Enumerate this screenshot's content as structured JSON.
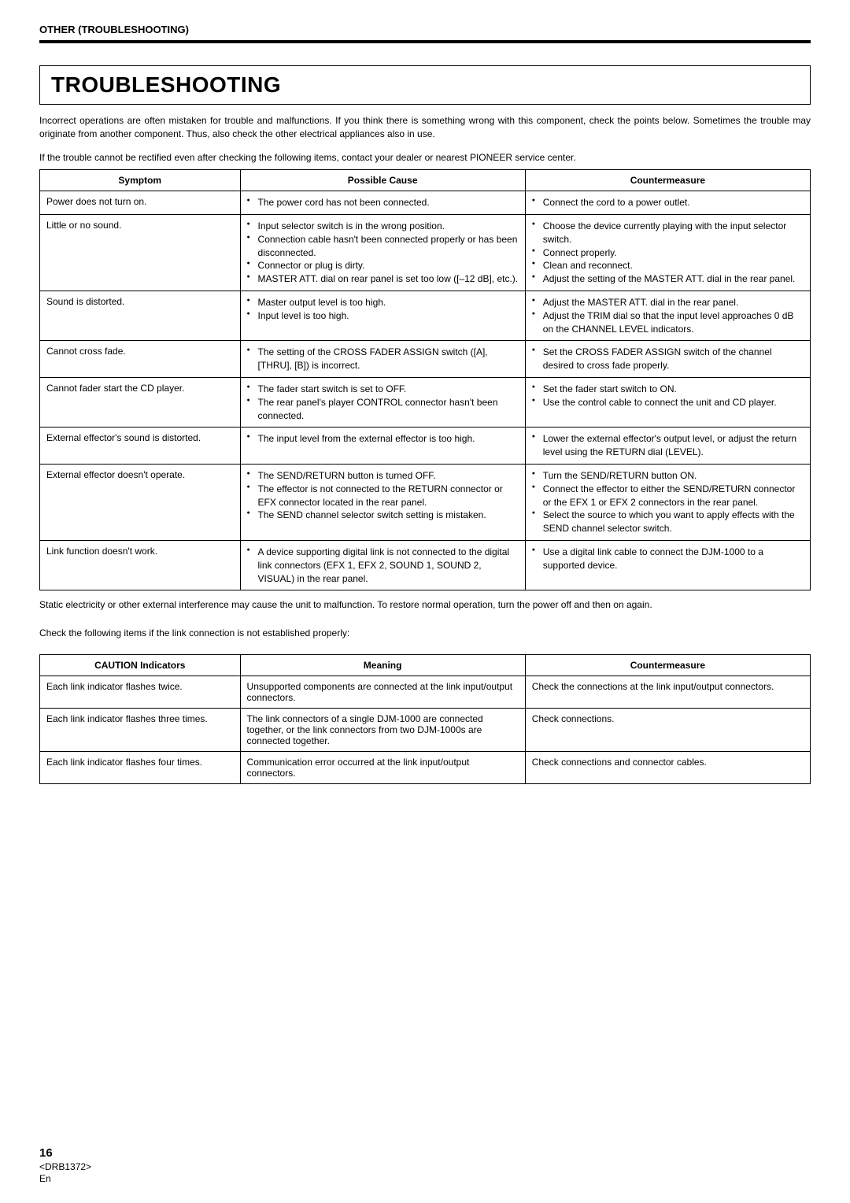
{
  "header": "OTHER (TROUBLESHOOTING)",
  "title": "TROUBLESHOOTING",
  "intro_p1": "Incorrect operations are often mistaken for trouble and malfunctions. If you think there is something wrong with this component, check the points below. Sometimes the trouble may originate from another component. Thus, also check the other electrical appliances also in use.",
  "intro_p2": "If the trouble cannot be rectified even after checking the following items, contact your dealer or nearest PIONEER service center.",
  "table1": {
    "headers": [
      "Symptom",
      "Possible Cause",
      "Countermeasure"
    ],
    "rows": [
      {
        "symptom": "Power does not turn on.",
        "cause": [
          "The power cord has not been connected."
        ],
        "counter": [
          "Connect the cord to a power outlet."
        ]
      },
      {
        "symptom": "Little or no sound.",
        "cause": [
          "Input selector switch is in the wrong position.",
          "Connection cable hasn't been connected properly or has been disconnected.",
          "Connector or plug is dirty.",
          "MASTER ATT. dial on rear panel is set too low ([–12 dB], etc.)."
        ],
        "counter": [
          "Choose the device currently playing with the input selector switch.",
          "Connect properly.",
          "Clean and reconnect.",
          "Adjust the setting of the MASTER ATT. dial in the rear panel."
        ]
      },
      {
        "symptom": "Sound is distorted.",
        "cause": [
          "Master output level is too high.",
          "Input level is too high."
        ],
        "counter": [
          "Adjust the MASTER ATT. dial in the rear panel.",
          "Adjust the TRIM dial so that the input level approaches 0 dB on the CHANNEL LEVEL indicators."
        ]
      },
      {
        "symptom": "Cannot cross fade.",
        "cause": [
          "The setting of the CROSS FADER ASSIGN switch ([A], [THRU], [B]) is incorrect."
        ],
        "counter": [
          "Set the CROSS FADER ASSIGN switch of the channel desired to cross fade properly."
        ]
      },
      {
        "symptom": "Cannot fader start the CD player.",
        "cause": [
          "The fader start switch is set to OFF.",
          "The rear panel's player CONTROL connector hasn't been connected."
        ],
        "counter": [
          "Set the fader start switch to ON.",
          "Use the control cable to connect the unit and CD player."
        ]
      },
      {
        "symptom": "External effector's sound is distorted.",
        "cause": [
          "The input level from the external effector is too high."
        ],
        "counter": [
          "Lower the external effector's output level, or adjust the return level using the RETURN dial (LEVEL)."
        ]
      },
      {
        "symptom": "External effector doesn't operate.",
        "cause": [
          "The SEND/RETURN button is turned OFF.",
          "The effector is not connected to the RETURN connector or EFX connector located in the rear panel.",
          "The SEND channel selector switch setting is mistaken."
        ],
        "counter": [
          "Turn the SEND/RETURN button ON.",
          "Connect the effector to either the SEND/RETURN connector or the EFX 1 or EFX 2 connectors in the rear panel.",
          "Select the source to which you want to apply effects with the SEND channel selector switch."
        ]
      },
      {
        "symptom": "Link function doesn't work.",
        "cause": [
          "A device supporting digital link is not connected to the digital link connectors (EFX 1, EFX 2, SOUND 1, SOUND 2, VISUAL) in the rear panel."
        ],
        "counter": [
          "Use a digital link cable to connect the DJM-1000 to a supported device."
        ]
      }
    ]
  },
  "mid_note1": "Static electricity or other external interference may cause the unit to malfunction. To restore normal operation, turn the power off and then on again.",
  "mid_note2": "Check the following items if the link connection is not established properly:",
  "table2": {
    "headers": [
      "CAUTION Indicators",
      "Meaning",
      "Countermeasure"
    ],
    "rows": [
      {
        "a": "Each link indicator flashes twice.",
        "b": "Unsupported components are connected at the link input/output connectors.",
        "c": "Check the connections at the link input/output connectors."
      },
      {
        "a": "Each link indicator flashes three times.",
        "b": "The link connectors of a single DJM-1000 are connected together, or the link connectors from two DJM-1000s are connected together.",
        "c": "Check connections."
      },
      {
        "a": "Each link indicator flashes four times.",
        "b": "Communication error occurred at the link input/output connectors.",
        "c": "Check connections and connector cables."
      }
    ]
  },
  "footer": {
    "page": "16",
    "code": "<DRB1372>",
    "lang": "En"
  }
}
